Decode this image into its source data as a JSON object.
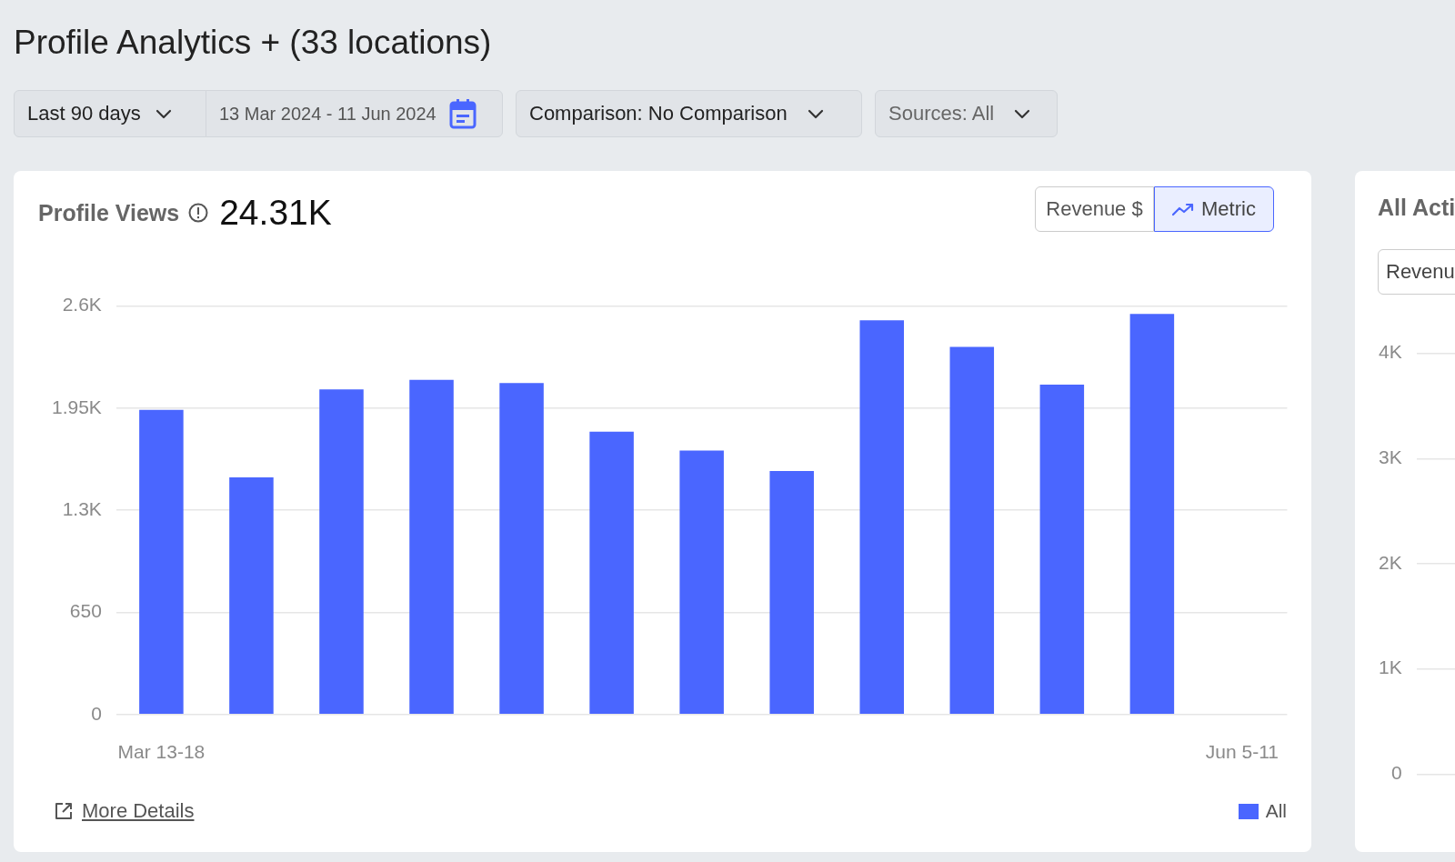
{
  "chart_data": [
    {
      "type": "bar",
      "title": "Profile Views",
      "subtitle": "24.31K",
      "annotations": [
        "Profile Analytics + (33 locations)",
        "Last 90 days",
        "13 Mar 2024 - 11 Jun 2024",
        "Comparison: No Comparison",
        "Sources: All",
        "Revenue $",
        "Metric",
        "More Details"
      ],
      "categories": [
        "Mar 13-18",
        null,
        null,
        null,
        null,
        null,
        null,
        null,
        null,
        null,
        null,
        null,
        "Jun 5-11"
      ],
      "series": [
        {
          "name": "All",
          "color": "#4a66ff",
          "values": [
            1940,
            1510,
            2070,
            2130,
            2110,
            1800,
            1680,
            1550,
            2510,
            2340,
            2100,
            2550,
            null
          ]
        }
      ],
      "ylim": [
        0,
        2600
      ],
      "yticks": [
        {
          "value": 0,
          "label": "0"
        },
        650,
        {
          "value": 1300,
          "label": "1.3K"
        },
        {
          "value": 1950,
          "label": "1.95K"
        },
        {
          "value": 2600,
          "label": "2.6K"
        }
      ],
      "grid": "y",
      "legend": "bottom right"
    },
    {
      "type": "bar",
      "title": "All Acti",
      "annotations": [
        "Revenu"
      ],
      "categories": [
        null
      ],
      "values": [
        null
      ],
      "ylim": [
        0,
        4000
      ],
      "yticks": [
        {
          "value": 0,
          "label": "0"
        },
        {
          "value": 1000,
          "label": "1K"
        },
        {
          "value": 2000,
          "label": "2K"
        },
        {
          "value": 3000,
          "label": "3K"
        },
        {
          "value": 4000,
          "label": "4K"
        }
      ],
      "grid": "y"
    }
  ]
}
